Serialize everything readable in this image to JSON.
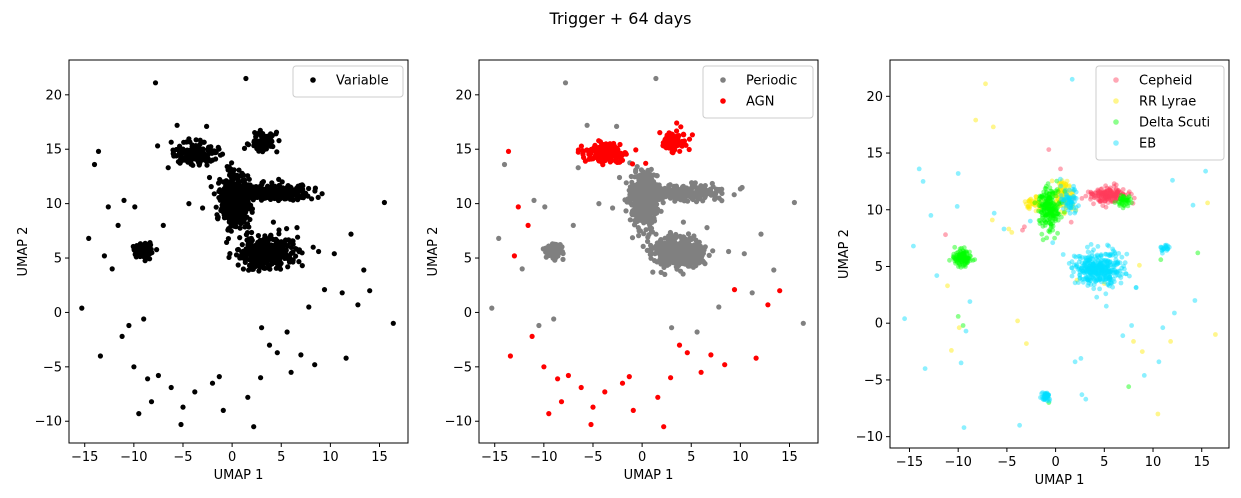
{
  "figure": {
    "suptitle": "Trigger + 64 days"
  },
  "chart_data": [
    {
      "type": "scatter",
      "xlabel": "UMAP 1",
      "ylabel": "UMAP 2",
      "xlim": [
        -16.6,
        17.9
      ],
      "ylim": [
        -12.0,
        23.2
      ],
      "xticks": [
        -15,
        -10,
        -5,
        0,
        5,
        10,
        15
      ],
      "yticks": [
        -10,
        -5,
        0,
        5,
        10,
        15,
        20
      ],
      "legend_position": "top-right",
      "series": [
        {
          "name": "Variable",
          "color": "#000000",
          "alpha": 1.0,
          "clusters": [
            {
              "cx": 0.3,
              "cy": 10.3,
              "sx": 0.7,
              "sy": 1.2,
              "n": 500
            },
            {
              "cx": 3.5,
              "cy": 5.5,
              "sx": 1.4,
              "sy": 0.7,
              "n": 420
            },
            {
              "cx": 4.2,
              "cy": 11.0,
              "sx": 2.1,
              "sy": 0.35,
              "n": 260
            },
            {
              "cx": -3.8,
              "cy": 14.6,
              "sx": 1.1,
              "sy": 0.45,
              "n": 180
            },
            {
              "cx": 3.2,
              "cy": 15.7,
              "sx": 0.6,
              "sy": 0.5,
              "n": 80
            },
            {
              "cx": -9.0,
              "cy": 5.7,
              "sx": 0.45,
              "sy": 0.35,
              "n": 90
            }
          ],
          "points": [
            [
              -15.3,
              0.4
            ],
            [
              -14.6,
              6.8
            ],
            [
              -14.0,
              13.6
            ],
            [
              -13.6,
              14.8
            ],
            [
              -13.4,
              -4.0
            ],
            [
              -13.0,
              5.2
            ],
            [
              -12.6,
              9.7
            ],
            [
              -12.2,
              4.0
            ],
            [
              -11.6,
              8.0
            ],
            [
              -11.2,
              -2.2
            ],
            [
              -11.0,
              10.3
            ],
            [
              -10.5,
              -1.2
            ],
            [
              -10.0,
              -5.0
            ],
            [
              -9.9,
              9.7
            ],
            [
              -9.5,
              -9.3
            ],
            [
              -9.0,
              -0.6
            ],
            [
              -8.6,
              -6.1
            ],
            [
              -8.2,
              -8.2
            ],
            [
              -7.8,
              21.1
            ],
            [
              -7.5,
              -5.8
            ],
            [
              -7.0,
              8.0
            ],
            [
              -6.5,
              13.3
            ],
            [
              -6.2,
              -6.9
            ],
            [
              -5.6,
              17.2
            ],
            [
              -5.2,
              -10.3
            ],
            [
              -5.0,
              -8.7
            ],
            [
              -4.4,
              10.0
            ],
            [
              -3.8,
              -7.3
            ],
            [
              -3.0,
              9.6
            ],
            [
              -2.6,
              17.1
            ],
            [
              -2.3,
              12.4
            ],
            [
              -2.0,
              -6.5
            ],
            [
              -1.3,
              -5.9
            ],
            [
              -0.9,
              -9.0
            ],
            [
              -0.5,
              13.4
            ],
            [
              1.4,
              21.5
            ],
            [
              1.6,
              -7.8
            ],
            [
              2.2,
              -10.5
            ],
            [
              2.9,
              -6.0
            ],
            [
              3.0,
              -1.4
            ],
            [
              3.8,
              -3.0
            ],
            [
              4.2,
              8.3
            ],
            [
              4.6,
              -3.7
            ],
            [
              5.6,
              -1.8
            ],
            [
              6.0,
              -5.5
            ],
            [
              6.6,
              7.8
            ],
            [
              7.0,
              -3.9
            ],
            [
              7.8,
              0.5
            ],
            [
              8.4,
              -4.8
            ],
            [
              8.8,
              5.6
            ],
            [
              9.4,
              2.1
            ],
            [
              10.4,
              5.4
            ],
            [
              11.2,
              1.8
            ],
            [
              11.6,
              -4.2
            ],
            [
              12.1,
              7.2
            ],
            [
              12.8,
              0.7
            ],
            [
              13.4,
              3.9
            ],
            [
              14.0,
              2.0
            ],
            [
              15.5,
              10.1
            ],
            [
              16.4,
              -1.0
            ]
          ]
        }
      ]
    },
    {
      "type": "scatter",
      "xlabel": "UMAP 1",
      "ylabel": "UMAP 2",
      "xlim": [
        -16.6,
        17.9
      ],
      "ylim": [
        -12.0,
        23.2
      ],
      "xticks": [
        -15,
        -10,
        -5,
        0,
        5,
        10,
        15
      ],
      "yticks": [
        -10,
        -5,
        0,
        5,
        10,
        15,
        20
      ],
      "legend_position": "top-right",
      "series": [
        {
          "name": "Periodic",
          "color": "#808080",
          "alpha": 1.0,
          "clusters": [
            {
              "cx": 0.3,
              "cy": 10.3,
              "sx": 0.7,
              "sy": 1.2,
              "n": 500
            },
            {
              "cx": 3.5,
              "cy": 5.5,
              "sx": 1.4,
              "sy": 0.7,
              "n": 420
            },
            {
              "cx": 4.2,
              "cy": 11.0,
              "sx": 2.1,
              "sy": 0.35,
              "n": 260
            },
            {
              "cx": -9.0,
              "cy": 5.7,
              "sx": 0.45,
              "sy": 0.35,
              "n": 90
            }
          ],
          "points": [
            [
              -15.3,
              0.4
            ],
            [
              -14.6,
              6.8
            ],
            [
              -14.0,
              13.6
            ],
            [
              -12.2,
              4.0
            ],
            [
              -11.0,
              10.3
            ],
            [
              -10.5,
              -1.2
            ],
            [
              -9.9,
              9.7
            ],
            [
              -9.0,
              -0.6
            ],
            [
              -7.8,
              21.1
            ],
            [
              -7.0,
              8.0
            ],
            [
              -6.5,
              13.3
            ],
            [
              -5.6,
              17.2
            ],
            [
              -4.4,
              10.0
            ],
            [
              -3.0,
              9.6
            ],
            [
              -2.6,
              17.1
            ],
            [
              -2.3,
              12.4
            ],
            [
              -0.5,
              13.4
            ],
            [
              1.4,
              21.5
            ],
            [
              3.0,
              -1.4
            ],
            [
              4.2,
              8.3
            ],
            [
              5.6,
              -1.8
            ],
            [
              6.6,
              7.8
            ],
            [
              7.8,
              0.5
            ],
            [
              8.8,
              5.6
            ],
            [
              10.4,
              5.4
            ],
            [
              11.2,
              1.8
            ],
            [
              12.1,
              7.2
            ],
            [
              13.4,
              3.9
            ],
            [
              15.5,
              10.1
            ],
            [
              16.4,
              -1.0
            ]
          ]
        },
        {
          "name": "AGN",
          "color": "#ff0000",
          "alpha": 1.0,
          "clusters": [
            {
              "cx": -3.8,
              "cy": 14.6,
              "sx": 1.1,
              "sy": 0.45,
              "n": 180
            },
            {
              "cx": 3.2,
              "cy": 15.7,
              "sx": 0.6,
              "sy": 0.5,
              "n": 80
            }
          ],
          "points": [
            [
              -13.6,
              14.8
            ],
            [
              -13.4,
              -4.0
            ],
            [
              -13.0,
              5.2
            ],
            [
              -12.6,
              9.7
            ],
            [
              -11.6,
              8.0
            ],
            [
              -11.2,
              -2.2
            ],
            [
              -10.0,
              -5.0
            ],
            [
              -9.5,
              -9.3
            ],
            [
              -8.6,
              -6.1
            ],
            [
              -8.2,
              -8.2
            ],
            [
              -7.5,
              -5.8
            ],
            [
              -6.2,
              -6.9
            ],
            [
              -5.2,
              -10.3
            ],
            [
              -5.0,
              -8.7
            ],
            [
              -3.8,
              -7.3
            ],
            [
              -2.0,
              -6.5
            ],
            [
              -1.3,
              -5.9
            ],
            [
              -0.9,
              -9.0
            ],
            [
              1.6,
              -7.8
            ],
            [
              2.2,
              -10.5
            ],
            [
              2.9,
              -6.0
            ],
            [
              3.8,
              -3.0
            ],
            [
              4.6,
              -3.7
            ],
            [
              6.0,
              -5.5
            ],
            [
              7.0,
              -3.9
            ],
            [
              8.4,
              -4.8
            ],
            [
              9.4,
              2.1
            ],
            [
              11.6,
              -4.2
            ],
            [
              12.8,
              0.7
            ],
            [
              14.0,
              2.0
            ]
          ]
        }
      ]
    },
    {
      "type": "scatter",
      "xlabel": "UMAP 1",
      "ylabel": "UMAP 2",
      "xlim": [
        -17.0,
        17.8
      ],
      "ylim": [
        -11.0,
        23.2
      ],
      "xticks": [
        -15,
        -10,
        -5,
        0,
        5,
        10,
        15
      ],
      "yticks": [
        -10,
        -5,
        0,
        5,
        10,
        15,
        20
      ],
      "legend_position": "top-right",
      "series": [
        {
          "name": "Cepheid",
          "color": "#ff3b5c",
          "alpha": 0.45,
          "clusters": [
            {
              "cx": 5.5,
              "cy": 11.3,
              "sx": 1.0,
              "sy": 0.35,
              "n": 170
            }
          ],
          "points": [
            [
              -11.3,
              7.8
            ],
            [
              -3.4,
              8.2
            ],
            [
              -3.2,
              8.5
            ],
            [
              -0.7,
              15.3
            ],
            [
              0.5,
              13.6
            ],
            [
              1.6,
              8.9
            ],
            [
              3.1,
              11.2
            ],
            [
              2.7,
              11.0
            ]
          ]
        },
        {
          "name": "RR Lyrae",
          "color": "#ffea00",
          "alpha": 0.45,
          "clusters": [
            {
              "cx": 0.8,
              "cy": 11.2,
              "sx": 0.45,
              "sy": 0.7,
              "n": 110
            },
            {
              "cx": -2.1,
              "cy": 10.6,
              "sx": 0.5,
              "sy": 0.4,
              "n": 40
            }
          ],
          "points": [
            [
              -7.2,
              21.1
            ],
            [
              -8.2,
              17.9
            ],
            [
              -6.4,
              17.3
            ],
            [
              -10.7,
              -2.4
            ],
            [
              -9.9,
              -0.4
            ],
            [
              -11.1,
              3.3
            ],
            [
              -6.5,
              9.1
            ],
            [
              -4.8,
              8.3
            ],
            [
              -3.0,
              -1.8
            ],
            [
              -3.9,
              0.2
            ],
            [
              2.2,
              3.8
            ],
            [
              5.0,
              3.5
            ],
            [
              8.6,
              5.1
            ],
            [
              8.9,
              -2.5
            ],
            [
              8.0,
              -1.6
            ],
            [
              10.5,
              -8.0
            ],
            [
              11.8,
              -1.6
            ],
            [
              15.6,
              10.6
            ],
            [
              16.4,
              -1.0
            ],
            [
              -4.5,
              8.0
            ]
          ]
        },
        {
          "name": "Delta Scuti",
          "color": "#00ff00",
          "alpha": 0.45,
          "clusters": [
            {
              "cx": -9.6,
              "cy": 5.8,
              "sx": 0.45,
              "sy": 0.35,
              "n": 120
            },
            {
              "cx": -0.6,
              "cy": 10.2,
              "sx": 0.55,
              "sy": 0.95,
              "n": 220
            },
            {
              "cx": 7.0,
              "cy": 10.8,
              "sx": 0.4,
              "sy": 0.25,
              "n": 40
            }
          ],
          "points": [
            [
              -10.0,
              0.6
            ],
            [
              -9.5,
              -0.2
            ],
            [
              -0.7,
              -7.0
            ],
            [
              -0.3,
              8.2
            ],
            [
              7.5,
              -5.6
            ],
            [
              10.8,
              5.6
            ],
            [
              14.6,
              6.2
            ],
            [
              -0.1,
              7.5
            ]
          ]
        },
        {
          "name": "EB",
          "color": "#00ddff",
          "alpha": 0.45,
          "clusters": [
            {
              "cx": 4.5,
              "cy": 4.8,
              "sx": 1.3,
              "sy": 0.75,
              "n": 380
            },
            {
              "cx": 1.4,
              "cy": 10.9,
              "sx": 0.4,
              "sy": 0.6,
              "n": 60
            },
            {
              "cx": -1.0,
              "cy": -6.5,
              "sx": 0.3,
              "sy": 0.2,
              "n": 40
            },
            {
              "cx": 11.2,
              "cy": 6.6,
              "sx": 0.3,
              "sy": 0.2,
              "n": 20
            }
          ],
          "points": [
            [
              -15.5,
              0.4
            ],
            [
              -14.6,
              6.8
            ],
            [
              -14.0,
              13.6
            ],
            [
              -13.6,
              12.5
            ],
            [
              -13.4,
              -4.0
            ],
            [
              -12.8,
              9.5
            ],
            [
              -12.2,
              4.2
            ],
            [
              -10.1,
              10.3
            ],
            [
              -10.0,
              13.2
            ],
            [
              -9.2,
              -0.7
            ],
            [
              -9.7,
              -3.5
            ],
            [
              -9.4,
              -9.2
            ],
            [
              -8.8,
              1.9
            ],
            [
              -6.3,
              9.7
            ],
            [
              -5.3,
              8.3
            ],
            [
              -3.7,
              -9.0
            ],
            [
              -2.6,
              9.0
            ],
            [
              -0.3,
              7.1
            ],
            [
              1.7,
              21.5
            ],
            [
              2.0,
              -3.4
            ],
            [
              2.6,
              -3.1
            ],
            [
              2.7,
              -6.3
            ],
            [
              3.1,
              -6.7
            ],
            [
              5.2,
              1.5
            ],
            [
              6.9,
              -1.1
            ],
            [
              7.8,
              -0.2
            ],
            [
              9.1,
              -4.6
            ],
            [
              10.6,
              -3.4
            ],
            [
              11.0,
              -0.4
            ],
            [
              12.0,
              12.6
            ],
            [
              12.2,
              0.9
            ],
            [
              14.1,
              10.4
            ],
            [
              14.3,
              2.0
            ],
            [
              15.4,
              13.4
            ]
          ]
        }
      ]
    }
  ]
}
